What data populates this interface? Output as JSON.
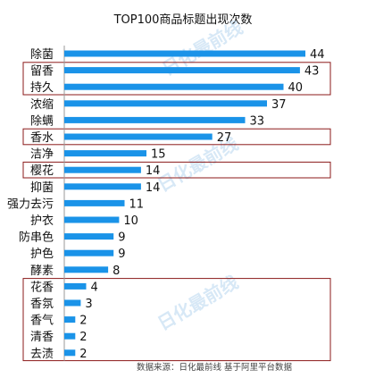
{
  "chart_data": {
    "type": "bar",
    "orientation": "horizontal",
    "title": "TOP100商品标题出现次数",
    "categories": [
      "除菌",
      "留香",
      "持久",
      "浓缩",
      "除螨",
      "香水",
      "洁净",
      "樱花",
      "抑菌",
      "强力去污",
      "护衣",
      "防串色",
      "护色",
      "酵素",
      "花香",
      "香氛",
      "香气",
      "清香",
      "去渍"
    ],
    "values": [
      44,
      43,
      40,
      37,
      33,
      27,
      15,
      14,
      14,
      11,
      10,
      9,
      9,
      8,
      4,
      3,
      2,
      2,
      2
    ],
    "xlim": [
      0,
      46
    ],
    "grid": false,
    "bar_color": "#1a93e8",
    "highlight_box_color": "#8b1a1a",
    "highlight_groups": [
      [
        "留香",
        "持久"
      ],
      [
        "香水"
      ],
      [
        "樱花"
      ],
      [
        "花香",
        "香氛",
        "香气",
        "清香",
        "去渍"
      ]
    ]
  },
  "source_note": "数据来源：日化最前线 基于阿里平台数据",
  "watermark": "日化最前线"
}
